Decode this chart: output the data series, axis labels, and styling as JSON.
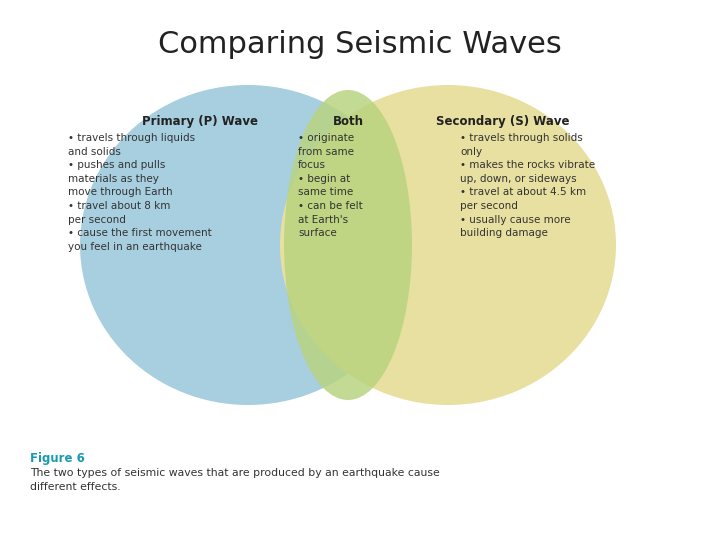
{
  "title": "Comparing Seismic Waves",
  "title_fontsize": 22,
  "background_color": "#ffffff",
  "circle_left_color": "#a8cfe0",
  "circle_right_color": "#e8e0a0",
  "overlap_color": "#b8d480",
  "left_header": "Primary (P) Wave",
  "both_header": "Both",
  "right_header": "Secondary (S) Wave",
  "left_items": [
    "travels through liquids\nand solids",
    "pushes and pulls\nmaterials as they\nmove through Earth",
    "travel about 8 km\nper second",
    "cause the first movement\nyou feel in an earthquake"
  ],
  "both_items": [
    "originate\nfrom same\nfocus",
    "begin at\nsame time",
    "can be felt\nat Earth's\nsurface"
  ],
  "right_items": [
    "travels through solids\nonly",
    "makes the rocks vibrate\nup, down, or sideways",
    "travel at about 4.5 km\nper second",
    "usually cause more\nbuilding damage"
  ],
  "figure_label": "Figure 6",
  "figure_label_color": "#1a9ab0",
  "caption": "The two types of seismic waves that are produced by an earthquake cause\ndifferent effects.",
  "header_fontsize": 8.5,
  "body_fontsize": 7.5
}
